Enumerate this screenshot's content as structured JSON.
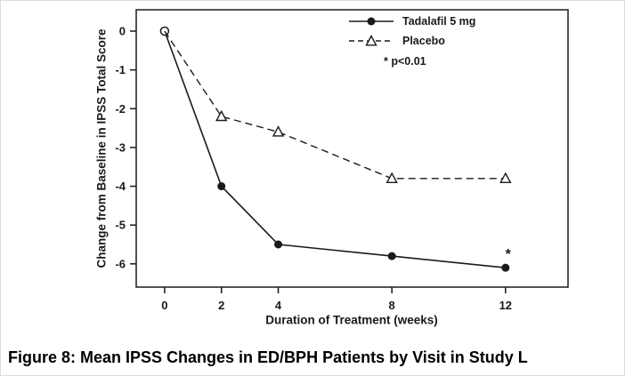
{
  "figure": {
    "caption": "Figure 8: Mean IPSS Changes in ED/BPH Patients by Visit in Study L"
  },
  "chart_data": {
    "type": "line",
    "title": "",
    "xlabel": "Duration of Treatment (weeks)",
    "ylabel": "Change from Baseline in IPSS Total Score",
    "x": [
      0,
      2,
      4,
      8,
      12
    ],
    "xticks": [
      0,
      2,
      4,
      8,
      12
    ],
    "yticks": [
      0,
      -1,
      -2,
      -3,
      -4,
      -5,
      -6
    ],
    "xlim": [
      -1,
      14.2
    ],
    "ylim": [
      -6.6,
      0.55
    ],
    "grid": false,
    "legend_position": "top-right-inside",
    "color": "#1a1a1a",
    "series": [
      {
        "name": "Tadalafil 5 mg",
        "values": [
          0,
          -4.0,
          -5.5,
          -5.8,
          -6.1
        ],
        "line": "solid",
        "marker": "circle-filled",
        "marker_overrides": {
          "0": "circle-open"
        }
      },
      {
        "name": "Placebo",
        "values": [
          0,
          -2.2,
          -2.6,
          -3.8,
          -3.8
        ],
        "line": "dashed",
        "marker": "triangle-open",
        "marker_overrides": {
          "0": "none"
        }
      }
    ],
    "p_note": "* p<0.01",
    "annotations": [
      {
        "text": "*",
        "x": 12,
        "y": -6.1,
        "dx": 3,
        "dy": -10
      }
    ]
  }
}
